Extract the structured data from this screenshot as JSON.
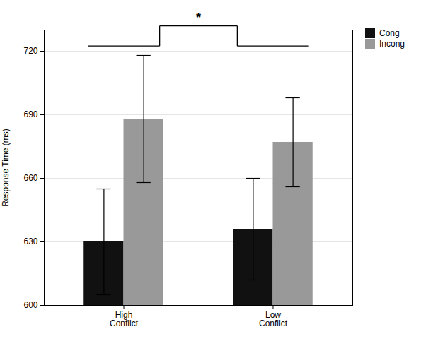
{
  "chart_data": {
    "type": "bar",
    "categories": [
      "High\nConflict",
      "Low\nConflict"
    ],
    "series": [
      {
        "name": "Cong",
        "color": "#111111",
        "values": [
          630,
          636
        ],
        "errors": [
          25,
          24
        ]
      },
      {
        "name": "Incong",
        "color": "#999999",
        "values": [
          688,
          677
        ],
        "errors": [
          30,
          21
        ]
      }
    ],
    "ylabel": "Response Time (ms)",
    "ylim": [
      600,
      730
    ],
    "yticks": [
      600,
      630,
      660,
      690,
      720
    ],
    "grid": true,
    "legend": "right",
    "annotations": [
      {
        "text": "*"
      }
    ]
  }
}
